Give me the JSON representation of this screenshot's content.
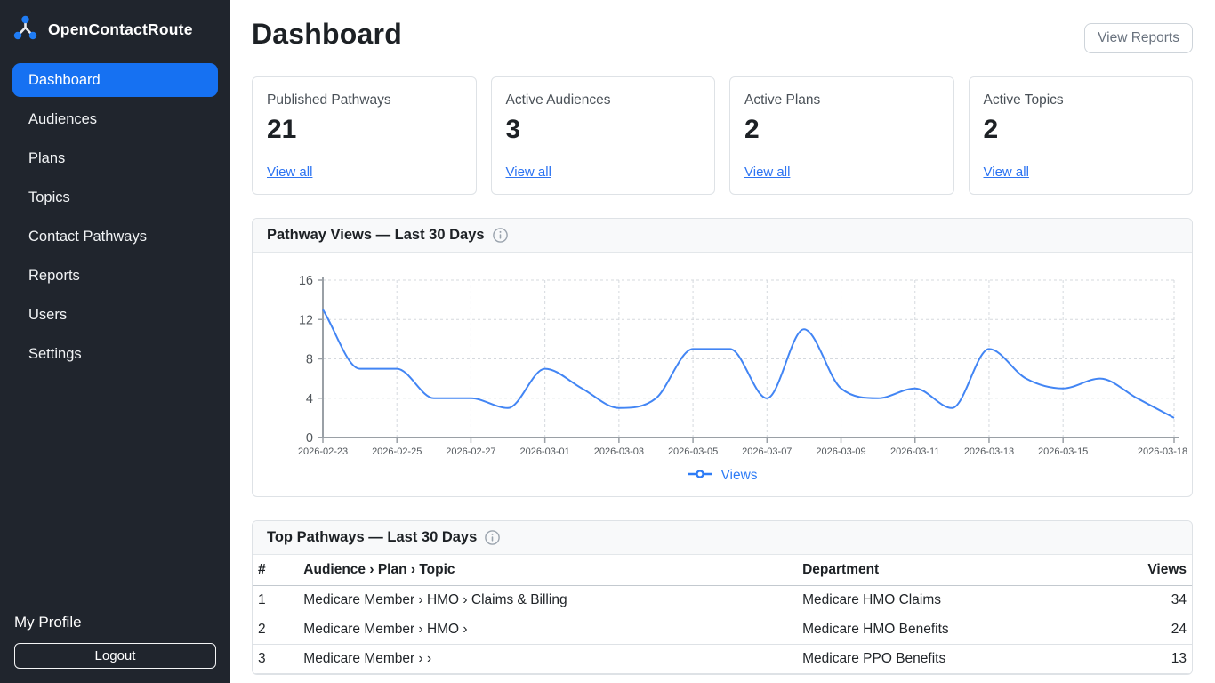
{
  "app": {
    "name": "OpenContactRoute"
  },
  "icons": {
    "logo": "share-nodes",
    "info": "circle-info",
    "legend_marker": "line-dot"
  },
  "colors": {
    "sidebar_bg": "#20252d",
    "primary_blue": "#1671f2",
    "link_blue": "#2d74f2",
    "chart_line": "#4285f4",
    "card_border": "#dee2e6",
    "panel_header_bg": "#f8f9fa",
    "text_dark": "#1d2125",
    "text_muted": "#495057"
  },
  "sidebar": {
    "items": [
      {
        "label": "Dashboard",
        "active": true
      },
      {
        "label": "Audiences",
        "active": false
      },
      {
        "label": "Plans",
        "active": false
      },
      {
        "label": "Topics",
        "active": false
      },
      {
        "label": "Contact Pathways",
        "active": false
      },
      {
        "label": "Reports",
        "active": false
      },
      {
        "label": "Users",
        "active": false
      },
      {
        "label": "Settings",
        "active": false
      }
    ],
    "profile_label": "My Profile",
    "logout_label": "Logout"
  },
  "header": {
    "title": "Dashboard",
    "view_reports_label": "View Reports"
  },
  "stats": [
    {
      "label": "Published Pathways",
      "value": "21",
      "link": "View all"
    },
    {
      "label": "Active Audiences",
      "value": "3",
      "link": "View all"
    },
    {
      "label": "Active Plans",
      "value": "2",
      "link": "View all"
    },
    {
      "label": "Active Topics",
      "value": "2",
      "link": "View all"
    }
  ],
  "chart_card": {
    "title": "Pathway Views — Last 30 Days"
  },
  "chart_data": {
    "type": "line",
    "title": "Pathway Views — Last 30 Days",
    "x": [
      "2026-02-23",
      "2026-02-24",
      "2026-02-25",
      "2026-02-26",
      "2026-02-27",
      "2026-02-28",
      "2026-03-01",
      "2026-03-02",
      "2026-03-03",
      "2026-03-04",
      "2026-03-05",
      "2026-03-06",
      "2026-03-07",
      "2026-03-08",
      "2026-03-09",
      "2026-03-10",
      "2026-03-11",
      "2026-03-12",
      "2026-03-13",
      "2026-03-14",
      "2026-03-15",
      "2026-03-16",
      "2026-03-17",
      "2026-03-18"
    ],
    "series": [
      {
        "name": "Views",
        "values": [
          13,
          7,
          7,
          4,
          4,
          3,
          7,
          5,
          3,
          4,
          9,
          9,
          4,
          11,
          5,
          4,
          5,
          3,
          9,
          6,
          5,
          6,
          4,
          2
        ]
      }
    ],
    "ylim": [
      0,
      16
    ],
    "yticks": [
      0,
      4,
      8,
      12,
      16
    ],
    "xtick_labels": [
      "2026-02-23",
      "2026-02-25",
      "2026-02-27",
      "2026-03-01",
      "2026-03-03",
      "2026-03-05",
      "2026-03-07",
      "2026-03-09",
      "2026-03-11",
      "2026-03-13",
      "2026-03-15",
      "2026-03-18"
    ],
    "grid": true,
    "legend_position": "bottom",
    "line_color": "#4285f4"
  },
  "table_card": {
    "title": "Top Pathways — Last 30 Days",
    "columns": [
      "#",
      "Audience › Plan › Topic",
      "Department",
      "Views"
    ],
    "rows": [
      [
        "1",
        "Medicare Member › HMO › Claims & Billing",
        "Medicare HMO Claims",
        "34"
      ],
      [
        "2",
        "Medicare Member › HMO ›",
        "Medicare HMO Benefits",
        "24"
      ],
      [
        "3",
        "Medicare Member › ›",
        "Medicare PPO Benefits",
        "13"
      ]
    ]
  }
}
